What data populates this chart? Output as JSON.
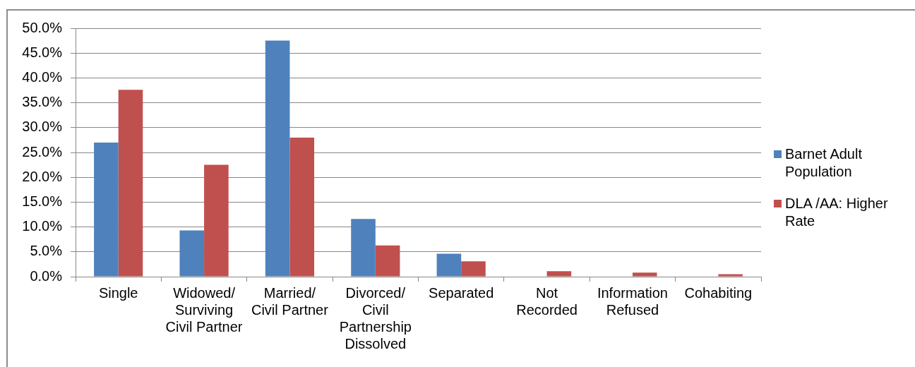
{
  "chart_data": {
    "type": "bar",
    "categories": [
      "Single",
      "Widowed/ Surviving Civil Partner",
      "Married/ Civil Partner",
      "Divorced/ Civil Partnership Dissolved",
      "Separated",
      "Not Recorded",
      "Information Refused",
      "Cohabiting"
    ],
    "series": [
      {
        "name": "Barnet Adult Population",
        "color": "#4f81bd",
        "values": [
          27.0,
          9.3,
          47.5,
          11.6,
          4.6,
          null,
          null,
          null
        ]
      },
      {
        "name": "DLA /AA: Higher Rate",
        "color": "#c0504d",
        "values": [
          37.6,
          22.5,
          28.0,
          6.3,
          3.1,
          1.1,
          0.8,
          0.5
        ]
      }
    ],
    "ylim": [
      0,
      50
    ],
    "yticks": [
      {
        "value": 0,
        "label": "0.0%"
      },
      {
        "value": 5,
        "label": "5.0%"
      },
      {
        "value": 10,
        "label": "10.0%"
      },
      {
        "value": 15,
        "label": "15.0%"
      },
      {
        "value": 20,
        "label": "20.0%"
      },
      {
        "value": 25,
        "label": "25.0%"
      },
      {
        "value": 30,
        "label": "30.0%"
      },
      {
        "value": 35,
        "label": "35.0%"
      },
      {
        "value": 40,
        "label": "40.0%"
      },
      {
        "value": 45,
        "label": "45.0%"
      },
      {
        "value": 50,
        "label": "50.0%"
      }
    ],
    "grid": "y",
    "legend": "right"
  }
}
